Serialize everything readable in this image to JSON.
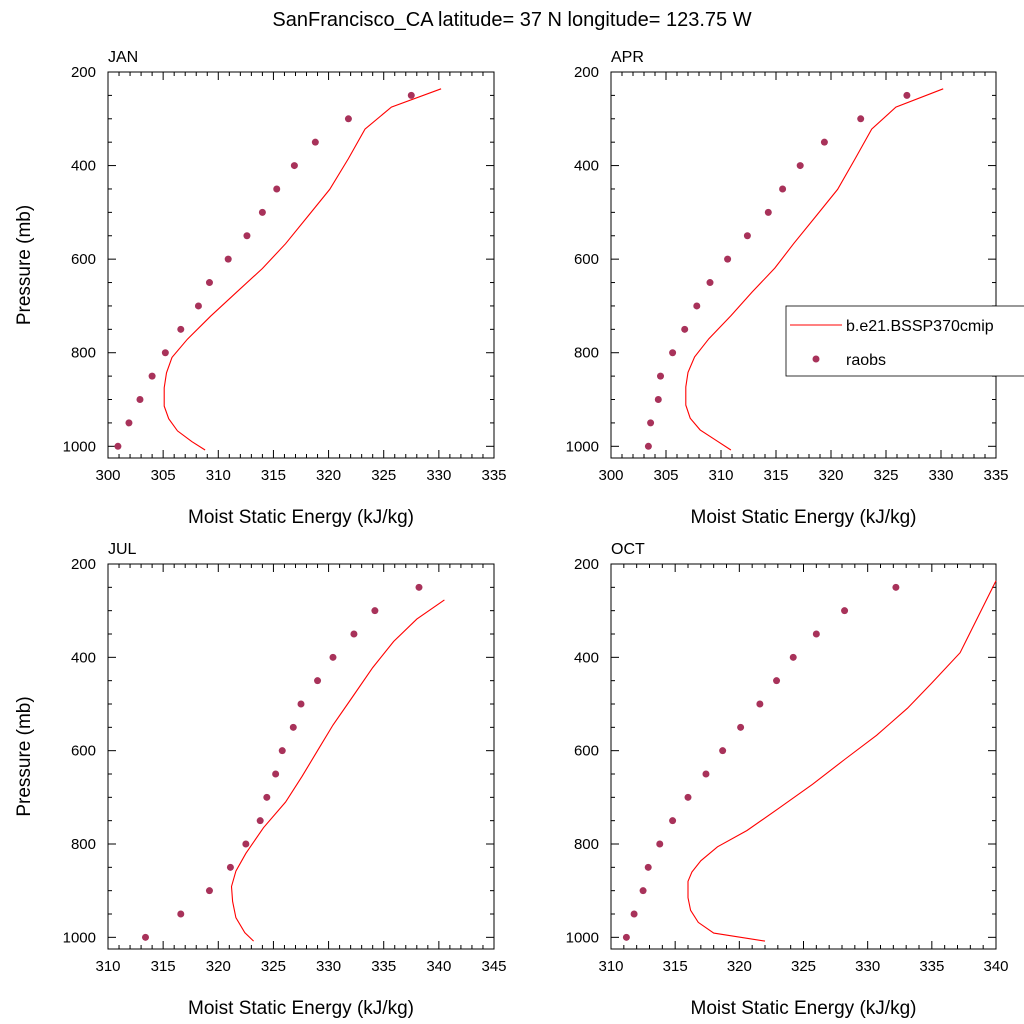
{
  "figure": {
    "title": "SanFrancisco_CA  latitude= 37 N longitude= 123.75 W"
  },
  "legend": {
    "model_label": "b.e21.BSSP370cmip",
    "obs_label": "raobs"
  },
  "colors": {
    "model_line": "#ff0000",
    "obs_marker": "#a8325a"
  },
  "chart_data": [
    {
      "type": "scatter",
      "panel": "JAN",
      "xlabel": "Moist Static Energy (kJ/kg)",
      "ylabel": "Pressure (mb)",
      "xlim": [
        300,
        335
      ],
      "ylim": [
        1025,
        200
      ],
      "xticks": [
        300,
        305,
        310,
        315,
        320,
        325,
        330,
        335
      ],
      "yticks": [
        200,
        400,
        600,
        800,
        1000
      ],
      "series": [
        {
          "name": "b.e21.BSSP370cmip",
          "kind": "line",
          "x": [
            308.8,
            307.6,
            306.3,
            305.5,
            305.1,
            305.1,
            305.3,
            305.8,
            307.2,
            309.3,
            311.6,
            314.0,
            316.1,
            318.1,
            320.1,
            321.8,
            323.3,
            325.7,
            330.2
          ],
          "y": [
            1008,
            990,
            967,
            941,
            914,
            875,
            843,
            810,
            771,
            722,
            672,
            620,
            567,
            509,
            451,
            385,
            322,
            275,
            236
          ]
        },
        {
          "name": "raobs",
          "kind": "markers",
          "x": [
            300.9,
            301.9,
            302.9,
            304.0,
            305.2,
            306.6,
            308.2,
            309.2,
            310.9,
            312.6,
            314.0,
            315.3,
            316.9,
            318.8,
            321.8,
            327.5
          ],
          "y": [
            1000,
            950,
            900,
            850,
            800,
            750,
            700,
            650,
            600,
            550,
            500,
            450,
            400,
            350,
            300,
            250
          ]
        }
      ]
    },
    {
      "type": "scatter",
      "panel": "APR",
      "xlabel": "Moist Static Energy (kJ/kg)",
      "ylabel": "",
      "xlim": [
        300,
        335
      ],
      "ylim": [
        1025,
        200
      ],
      "xticks": [
        300,
        305,
        310,
        315,
        320,
        325,
        330,
        335
      ],
      "yticks": [
        200,
        400,
        600,
        800,
        1000
      ],
      "series": [
        {
          "name": "b.e21.BSSP370cmip",
          "kind": "line",
          "x": [
            310.9,
            309.6,
            308.1,
            307.2,
            306.8,
            306.8,
            307.0,
            307.6,
            308.9,
            310.9,
            312.8,
            314.9,
            316.6,
            318.6,
            320.6,
            322.2,
            323.7,
            325.9,
            330.2
          ],
          "y": [
            1008,
            988,
            965,
            940,
            912,
            873,
            842,
            809,
            770,
            721,
            671,
            619,
            567,
            509,
            451,
            385,
            322,
            275,
            236
          ]
        },
        {
          "name": "raobs",
          "kind": "markers",
          "x": [
            303.4,
            303.6,
            304.3,
            304.5,
            305.6,
            306.7,
            307.8,
            309.0,
            310.6,
            312.4,
            314.3,
            315.6,
            317.2,
            319.4,
            322.7,
            326.9
          ],
          "y": [
            1000,
            950,
            900,
            850,
            800,
            750,
            700,
            650,
            600,
            550,
            500,
            450,
            400,
            350,
            300,
            250
          ]
        }
      ]
    },
    {
      "type": "scatter",
      "panel": "JUL",
      "xlabel": "Moist Static Energy (kJ/kg)",
      "ylabel": "Pressure (mb)",
      "xlim": [
        310,
        345
      ],
      "ylim": [
        1025,
        200
      ],
      "xticks": [
        310,
        315,
        320,
        325,
        330,
        335,
        340,
        345
      ],
      "yticks": [
        200,
        400,
        600,
        800,
        1000
      ],
      "series": [
        {
          "name": "b.e21.BSSP370cmip",
          "kind": "line",
          "x": [
            323.2,
            322.4,
            321.6,
            321.3,
            321.2,
            321.6,
            322.5,
            324.1,
            326.1,
            327.6,
            329.0,
            330.4,
            332.2,
            334.0,
            335.9,
            338.0,
            340.5
          ],
          "y": [
            1008,
            990,
            958,
            923,
            891,
            858,
            820,
            765,
            710,
            655,
            600,
            545,
            484,
            422,
            366,
            318,
            277
          ]
        },
        {
          "name": "raobs",
          "kind": "markers",
          "x": [
            313.4,
            316.6,
            319.2,
            321.1,
            322.5,
            323.8,
            324.4,
            325.2,
            325.8,
            326.8,
            327.5,
            329.0,
            330.4,
            332.3,
            334.2,
            338.2
          ],
          "y": [
            1000,
            950,
            900,
            850,
            800,
            750,
            700,
            650,
            600,
            550,
            500,
            450,
            400,
            350,
            300,
            250
          ]
        }
      ]
    },
    {
      "type": "scatter",
      "panel": "OCT",
      "xlabel": "Moist Static Energy (kJ/kg)",
      "ylabel": "",
      "xlim": [
        310,
        340
      ],
      "ylim": [
        1025,
        200
      ],
      "xticks": [
        310,
        315,
        320,
        325,
        330,
        335,
        340
      ],
      "yticks": [
        200,
        400,
        600,
        800,
        1000
      ],
      "series": [
        {
          "name": "b.e21.BSSP370cmip",
          "kind": "line",
          "x": [
            322.0,
            318.0,
            316.8,
            316.2,
            316.0,
            316.0,
            316.3,
            317.0,
            318.3,
            320.6,
            323.1,
            325.7,
            328.2,
            330.7,
            333.1,
            335.0,
            337.2,
            340.0
          ],
          "y": [
            1008,
            991,
            968,
            942,
            915,
            880,
            860,
            836,
            806,
            771,
            723,
            672,
            619,
            567,
            509,
            455,
            390,
            236
          ]
        },
        {
          "name": "raobs",
          "kind": "markers",
          "x": [
            311.2,
            311.8,
            312.5,
            312.9,
            313.8,
            314.8,
            316.0,
            317.4,
            318.7,
            320.1,
            321.6,
            322.9,
            324.2,
            326.0,
            328.2,
            332.2
          ],
          "y": [
            1000,
            950,
            900,
            850,
            800,
            750,
            700,
            650,
            600,
            550,
            500,
            450,
            400,
            350,
            300,
            250
          ]
        }
      ]
    }
  ]
}
